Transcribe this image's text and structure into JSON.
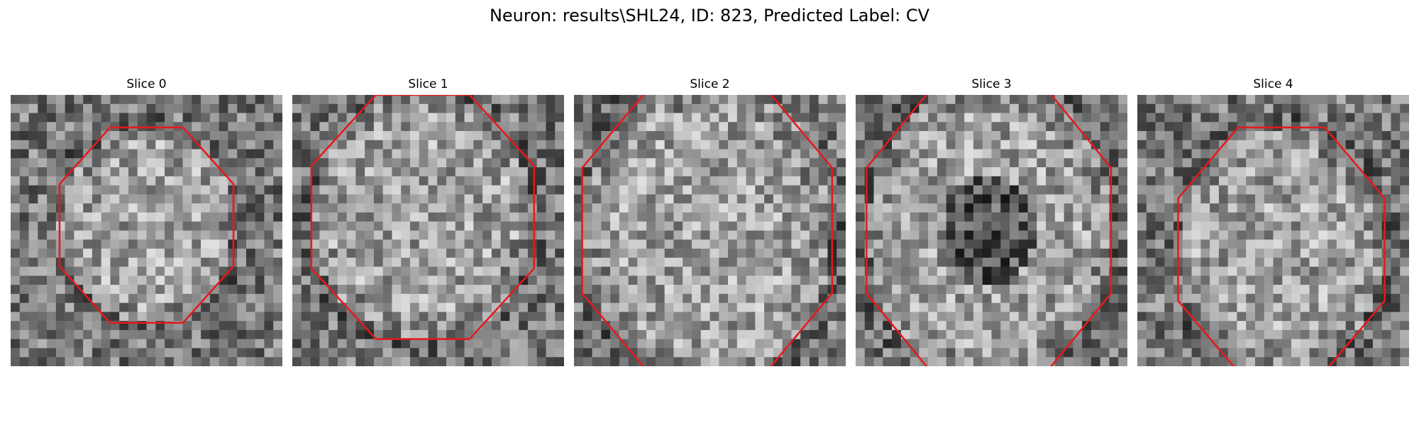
{
  "figure": {
    "title": "Neuron: results\\SHL24, ID: 823, Predicted Label: CV"
  },
  "panels": [
    {
      "title": "Slice 0",
      "seed": 11,
      "ring_center": [
        0.5,
        0.48
      ],
      "ring_radius": [
        0.32,
        0.36
      ],
      "dark_core": false
    },
    {
      "title": "Slice 1",
      "seed": 23,
      "ring_center": [
        0.48,
        0.45
      ],
      "ring_radius": [
        0.41,
        0.45
      ],
      "dark_core": false
    },
    {
      "title": "Slice 2",
      "seed": 37,
      "ring_center": [
        0.49,
        0.5
      ],
      "ring_radius": [
        0.46,
        0.55
      ],
      "dark_core": false
    },
    {
      "title": "Slice 3",
      "seed": 53,
      "ring_center": [
        0.49,
        0.5
      ],
      "ring_radius": [
        0.45,
        0.55
      ],
      "dark_core": true
    },
    {
      "title": "Slice 4",
      "seed": 71,
      "ring_center": [
        0.53,
        0.57
      ],
      "ring_radius": [
        0.38,
        0.45
      ],
      "dark_core": false
    }
  ],
  "style": {
    "contour_color": "#e41a1c"
  }
}
